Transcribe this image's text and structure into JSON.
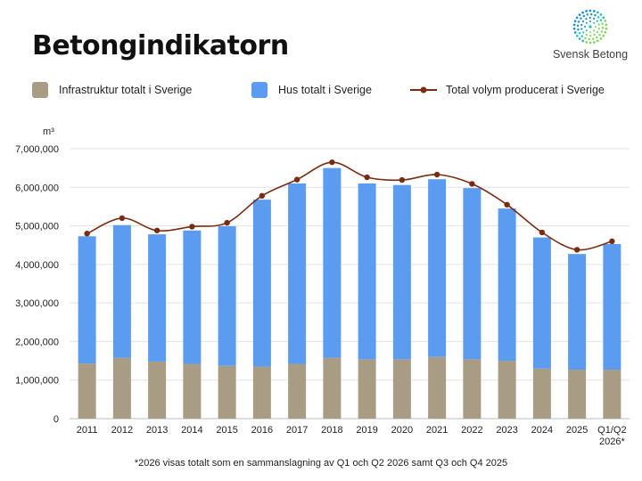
{
  "title": "Betongindikatorn",
  "logo": {
    "text": "Svensk Betong",
    "icon": "dotted-sphere-icon",
    "colors": [
      "#1b8fd6",
      "#1fc4b4",
      "#7fd85a"
    ]
  },
  "legend": [
    {
      "key": "infra",
      "label": "Infrastruktur totalt i Sverige",
      "color": "#a89c85"
    },
    {
      "key": "hus",
      "label": "Hus totalt i Sverige",
      "color": "#5b9cf0"
    },
    {
      "key": "total",
      "label": "Total volym producerat i Sverige",
      "color": "#7a2c12"
    }
  ],
  "footnote": "*2026 visas totalt som en sammanslagning av Q1 och Q2 2026 samt Q3 och Q4 2025",
  "chart_data": {
    "type": "bar",
    "stacked": true,
    "ylabel": "m³",
    "ylim": [
      0,
      7000000
    ],
    "yticks": [
      "0",
      "1,000,000",
      "2,000,000",
      "3,000,000",
      "4,000,000",
      "5,000,000",
      "6,000,000",
      "7,000,000"
    ],
    "ytick_values": [
      0,
      1000000,
      2000000,
      3000000,
      4000000,
      5000000,
      6000000,
      7000000
    ],
    "categories": [
      "2011",
      "2012",
      "2013",
      "2014",
      "2015",
      "2016",
      "2017",
      "2018",
      "2019",
      "2020",
      "2021",
      "2022",
      "2023",
      "2024",
      "2025",
      "Q1/Q2|2026*"
    ],
    "series": [
      {
        "name": "Infrastruktur totalt i Sverige",
        "type": "bar",
        "color": "#a89c85",
        "values": [
          1430000,
          1580000,
          1480000,
          1420000,
          1370000,
          1350000,
          1420000,
          1580000,
          1540000,
          1540000,
          1600000,
          1540000,
          1500000,
          1300000,
          1270000,
          1270000
        ]
      },
      {
        "name": "Hus totalt i Sverige",
        "type": "bar",
        "color": "#5b9cf0",
        "values": [
          3300000,
          3440000,
          3300000,
          3460000,
          3620000,
          4330000,
          4680000,
          4920000,
          4560000,
          4520000,
          4610000,
          4440000,
          3950000,
          3400000,
          3000000,
          3260000
        ]
      },
      {
        "name": "Total volym producerat i Sverige",
        "type": "line",
        "color": "#7a2c12",
        "values": [
          4800000,
          5200000,
          4880000,
          4980000,
          5080000,
          5780000,
          6200000,
          6650000,
          6260000,
          6190000,
          6330000,
          6090000,
          5550000,
          4830000,
          4380000,
          4600000
        ]
      }
    ],
    "grid": true,
    "legend_position": "top"
  }
}
